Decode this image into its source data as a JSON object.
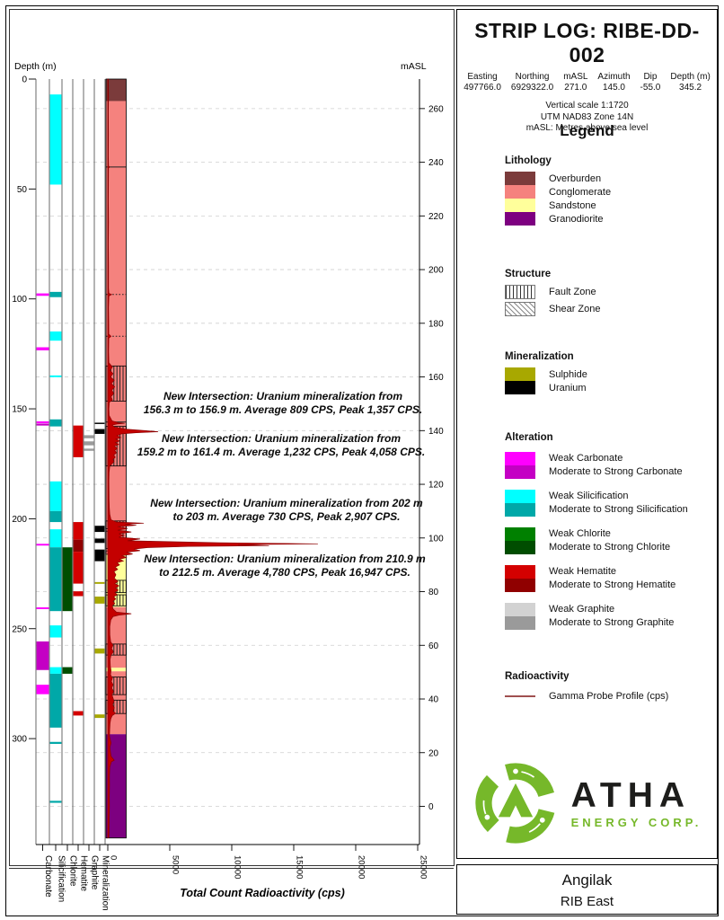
{
  "header": {
    "title": "STRIP LOG: RIBE-DD-002",
    "fields": [
      {
        "label": "Easting",
        "value": "497766.0"
      },
      {
        "label": "Northing",
        "value": "6929322.0"
      },
      {
        "label": "mASL",
        "value": "271.0"
      },
      {
        "label": "Azimuth",
        "value": "145.0"
      },
      {
        "label": "Dip",
        "value": "-55.0"
      },
      {
        "label": "Depth (m)",
        "value": "345.2"
      }
    ],
    "notes": [
      "Vertical scale 1:1720",
      "UTM NAD83 Zone 14N",
      "mASL: Metres above sea level"
    ]
  },
  "legend": {
    "title": "Legend",
    "lithology": {
      "title": "Lithology",
      "items": [
        {
          "label": "Overburden",
          "color": "#7B3B3B"
        },
        {
          "label": "Conglomerate",
          "color": "#F5827E"
        },
        {
          "label": "Sandstone",
          "color": "#FFFF9B"
        },
        {
          "label": "Granodiorite",
          "color": "#7D0080"
        }
      ]
    },
    "structure": {
      "title": "Structure",
      "items": [
        {
          "label": "Fault Zone",
          "pattern": "fault"
        },
        {
          "label": "Shear Zone",
          "pattern": "shear"
        }
      ]
    },
    "mineralization": {
      "title": "Mineralization",
      "items": [
        {
          "label": "Sulphide",
          "color": "#A8A800"
        },
        {
          "label": "Uranium",
          "color": "#000000"
        }
      ]
    },
    "alteration": {
      "title": "Alteration",
      "items": [
        {
          "weak_label": "Weak Carbonate",
          "strong_label": "Moderate to Strong Carbonate",
          "weak_color": "#FF00FF",
          "strong_color": "#C400C4"
        },
        {
          "weak_label": "Weak Silicification",
          "strong_label": "Moderate to Strong Silicification",
          "weak_color": "#00FFFF",
          "strong_color": "#00A8A8"
        },
        {
          "weak_label": "Weak Chlorite",
          "strong_label": "Moderate to Strong Chlorite",
          "weak_color": "#008000",
          "strong_color": "#004D00"
        },
        {
          "weak_label": "Weak Hematite",
          "strong_label": "Moderate to Strong Hematite",
          "weak_color": "#D40000",
          "strong_color": "#900000"
        },
        {
          "weak_label": "Weak Graphite",
          "strong_label": "Moderate to Strong Graphite",
          "weak_color": "#D2D2D2",
          "strong_color": "#9A9A9A"
        }
      ]
    },
    "radioactivity": {
      "title": "Radioactivity",
      "label": "Gamma Probe Profile (cps)",
      "line_color": "#A05050"
    }
  },
  "logo": {
    "text": "ATHA",
    "subtext": "ENERGY CORP.",
    "green": "#76B82A"
  },
  "footer": {
    "project": "Angilak",
    "area": "RIB East"
  },
  "chart_data": {
    "type": "strip-log",
    "depth_axis": {
      "label": "Depth (m)",
      "ticks": [
        0,
        50,
        100,
        150,
        200,
        250,
        300
      ],
      "max_depth": 345.2
    },
    "masl_axis": {
      "label": "mASL",
      "ticks": [
        260,
        240,
        220,
        200,
        180,
        160,
        140,
        120,
        100,
        80,
        60,
        40,
        20,
        0
      ],
      "collar_masl": 271.0,
      "dip_sin": 0.8192
    },
    "x_axis": {
      "label": "Total Count Radioactivity (cps)",
      "ticks": [
        0,
        5000,
        10000,
        15000,
        20000,
        25000
      ],
      "max": 25000
    },
    "colors": {
      "carbonate": {
        "w": "#FF00FF",
        "s": "#C400C4"
      },
      "silicification": {
        "w": "#00FFFF",
        "s": "#00A8A8"
      },
      "chlorite": {
        "w": "#008000",
        "s": "#004D00"
      },
      "hematite": {
        "w": "#D40000",
        "s": "#900000"
      },
      "graphite": {
        "w": "#D2D2D2",
        "s": "#9A9A9A"
      },
      "mineralization": {
        "u": "#000000",
        "sl": "#A8A800"
      }
    },
    "strip_columns": [
      {
        "label": "Carbonate",
        "key": "carbonate",
        "intervals": [
          [
            97.5,
            98.6,
            "w"
          ],
          [
            122,
            123.4,
            "w"
          ],
          [
            155.7,
            156.5,
            "w"
          ],
          [
            156.7,
            157.6,
            "s"
          ],
          [
            211.4,
            212.2,
            "w"
          ],
          [
            240.3,
            241.1,
            "w"
          ],
          [
            255.8,
            268.8,
            "s"
          ],
          [
            275.5,
            279.8,
            "w"
          ]
        ]
      },
      {
        "label": "Silicification",
        "key": "silicification",
        "intervals": [
          [
            7,
            48,
            "w"
          ],
          [
            96.8,
            99.2,
            "s"
          ],
          [
            114.8,
            119,
            "w"
          ],
          [
            134.8,
            135.6,
            "w"
          ],
          [
            154.8,
            158,
            "s"
          ],
          [
            183,
            196.5,
            "w"
          ],
          [
            196.5,
            201.5,
            "s"
          ],
          [
            204.8,
            213,
            "w"
          ],
          [
            213,
            242,
            "s"
          ],
          [
            248.5,
            254,
            "w"
          ],
          [
            267.5,
            270.5,
            "w"
          ],
          [
            270.5,
            295,
            "s"
          ],
          [
            301.5,
            302.4,
            "s"
          ],
          [
            328.3,
            329.2,
            "s"
          ]
        ]
      },
      {
        "label": "Chlorite",
        "key": "chlorite",
        "intervals": [
          [
            213,
            242,
            "s"
          ],
          [
            267.5,
            270.5,
            "s"
          ]
        ]
      },
      {
        "label": "Hematite",
        "key": "hematite",
        "intervals": [
          [
            157.6,
            172,
            "w"
          ],
          [
            201.5,
            209.5,
            "w"
          ],
          [
            209.5,
            215,
            "s"
          ],
          [
            215,
            229.5,
            "w"
          ],
          [
            233,
            235.2,
            "w"
          ],
          [
            287.5,
            289.5,
            "w"
          ]
        ]
      },
      {
        "label": "Graphite",
        "key": "graphite",
        "intervals": [
          [
            162,
            163.4,
            "s"
          ],
          [
            164.8,
            166.6,
            "s"
          ],
          [
            168.1,
            169.1,
            "s"
          ]
        ]
      },
      {
        "label": "Mineralization",
        "key": "mineralization",
        "intervals": [
          [
            156.3,
            156.9,
            "u"
          ],
          [
            159.2,
            161.4,
            "u"
          ],
          [
            203.2,
            206,
            "u"
          ],
          [
            209,
            211,
            "u"
          ],
          [
            214,
            219.3,
            "u"
          ],
          [
            228.8,
            229.6,
            "sl"
          ],
          [
            235.4,
            238.6,
            "sl"
          ],
          [
            259,
            261.3,
            "sl"
          ],
          [
            289,
            290.6,
            "sl"
          ]
        ]
      }
    ],
    "lithology_colors": {
      "Overburden": "#7B3B3B",
      "Conglomerate": "#F5827E",
      "Sandstone": "#FFFF9B",
      "Granodiorite": "#7D0080"
    },
    "lithology_intervals": [
      [
        0,
        10,
        "Overburden"
      ],
      [
        10,
        216,
        "Conglomerate"
      ],
      [
        216,
        240.2,
        "Sandstone"
      ],
      [
        240.2,
        267.8,
        "Conglomerate"
      ],
      [
        267.8,
        269.4,
        "Sandstone"
      ],
      [
        269.4,
        298,
        "Conglomerate"
      ],
      [
        298,
        345.2,
        "Granodiorite"
      ]
    ],
    "fault_zones": [
      [
        130.5,
        146.5
      ],
      [
        158,
        176
      ],
      [
        201,
        204.6
      ],
      [
        205.6,
        213.6
      ],
      [
        228,
        233.6
      ],
      [
        234.6,
        239.6
      ],
      [
        257,
        262
      ],
      [
        272,
        280
      ],
      [
        282.5,
        288.6
      ]
    ],
    "shear_zones": [
      [
        214.6,
        216.2
      ]
    ],
    "contacts": [
      {
        "d": 40,
        "style": "solid"
      },
      {
        "d": 98,
        "style": "dotted"
      },
      {
        "d": 117,
        "style": "dotted"
      },
      {
        "d": 156,
        "style": "solid"
      }
    ],
    "gamma_profile_cps": [
      [
        0,
        40
      ],
      [
        8,
        55
      ],
      [
        15,
        45
      ],
      [
        25,
        50
      ],
      [
        35,
        45
      ],
      [
        39.5,
        60
      ],
      [
        40,
        140
      ],
      [
        40.5,
        60
      ],
      [
        48,
        50
      ],
      [
        55,
        45
      ],
      [
        65,
        55
      ],
      [
        75,
        45
      ],
      [
        85,
        55
      ],
      [
        95,
        60
      ],
      [
        97.5,
        90
      ],
      [
        98,
        310
      ],
      [
        98.7,
        90
      ],
      [
        104,
        60
      ],
      [
        110,
        70
      ],
      [
        116,
        80
      ],
      [
        117,
        260
      ],
      [
        117.8,
        80
      ],
      [
        124,
        65
      ],
      [
        129,
        90
      ],
      [
        131,
        380
      ],
      [
        132.5,
        180
      ],
      [
        134,
        420
      ],
      [
        135.5,
        220
      ],
      [
        137,
        520
      ],
      [
        138.5,
        280
      ],
      [
        140,
        560
      ],
      [
        141.5,
        320
      ],
      [
        143,
        480
      ],
      [
        144.5,
        260
      ],
      [
        146,
        380
      ],
      [
        147,
        120
      ],
      [
        150,
        90
      ],
      [
        153,
        110
      ],
      [
        155.5,
        350
      ],
      [
        156.3,
        850
      ],
      [
        156.6,
        1357
      ],
      [
        156.9,
        750
      ],
      [
        157.4,
        350
      ],
      [
        158.3,
        550
      ],
      [
        159.2,
        1400
      ],
      [
        159.8,
        2700
      ],
      [
        160.4,
        4058
      ],
      [
        160.9,
        2300
      ],
      [
        161.4,
        1100
      ],
      [
        162.2,
        750
      ],
      [
        163,
        1050
      ],
      [
        163.8,
        650
      ],
      [
        164.6,
        950
      ],
      [
        165.4,
        600
      ],
      [
        166.2,
        880
      ],
      [
        167,
        520
      ],
      [
        168,
        760
      ],
      [
        169,
        560
      ],
      [
        170,
        700
      ],
      [
        171,
        480
      ],
      [
        172,
        600
      ],
      [
        173,
        420
      ],
      [
        174,
        500
      ],
      [
        175,
        330
      ],
      [
        176,
        160
      ],
      [
        179,
        100
      ],
      [
        183,
        90
      ],
      [
        187,
        95
      ],
      [
        191,
        100
      ],
      [
        195,
        120
      ],
      [
        198,
        160
      ],
      [
        200.5,
        260
      ],
      [
        201.5,
        700
      ],
      [
        202,
        2907
      ],
      [
        202.5,
        1400
      ],
      [
        203,
        2300
      ],
      [
        203.6,
        800
      ],
      [
        204.4,
        1600
      ],
      [
        205.2,
        800
      ],
      [
        206,
        1900
      ],
      [
        206.8,
        900
      ],
      [
        207.6,
        1300
      ],
      [
        208.4,
        900
      ],
      [
        209.2,
        2600
      ],
      [
        210,
        1600
      ],
      [
        210.9,
        9000
      ],
      [
        211.4,
        16947
      ],
      [
        211.8,
        10500
      ],
      [
        212.2,
        13000
      ],
      [
        212.6,
        6500
      ],
      [
        213.1,
        3200
      ],
      [
        213.8,
        2100
      ],
      [
        214.5,
        2600
      ],
      [
        215.2,
        1500
      ],
      [
        216,
        2000
      ],
      [
        216.8,
        1150
      ],
      [
        217.6,
        1500
      ],
      [
        218.4,
        950
      ],
      [
        219.2,
        1250
      ],
      [
        220,
        750
      ],
      [
        221,
        950
      ],
      [
        222,
        600
      ],
      [
        223,
        800
      ],
      [
        224,
        500
      ],
      [
        225.5,
        650
      ],
      [
        227,
        520
      ],
      [
        228.5,
        820
      ],
      [
        229.5,
        560
      ],
      [
        230.5,
        900
      ],
      [
        231.5,
        620
      ],
      [
        232.5,
        840
      ],
      [
        233.5,
        560
      ],
      [
        234.5,
        760
      ],
      [
        235.5,
        480
      ],
      [
        236.5,
        640
      ],
      [
        237.5,
        420
      ],
      [
        238.5,
        560
      ],
      [
        239.5,
        360
      ],
      [
        241,
        420
      ],
      [
        242.5,
        700
      ],
      [
        243.2,
        1900
      ],
      [
        243.8,
        900
      ],
      [
        244.5,
        420
      ],
      [
        246,
        240
      ],
      [
        249,
        160
      ],
      [
        253,
        170
      ],
      [
        256,
        230
      ],
      [
        257.5,
        420
      ],
      [
        259,
        300
      ],
      [
        260.5,
        460
      ],
      [
        262,
        260
      ],
      [
        264,
        180
      ],
      [
        267,
        200
      ],
      [
        269,
        260
      ],
      [
        271,
        220
      ],
      [
        272.5,
        380
      ],
      [
        274,
        280
      ],
      [
        275.5,
        430
      ],
      [
        277,
        310
      ],
      [
        278.5,
        470
      ],
      [
        280,
        330
      ],
      [
        281.5,
        420
      ],
      [
        283,
        500
      ],
      [
        284.5,
        380
      ],
      [
        286,
        520
      ],
      [
        287.5,
        430
      ],
      [
        288.5,
        620
      ],
      [
        289.5,
        360
      ],
      [
        291,
        240
      ],
      [
        293,
        180
      ],
      [
        296,
        150
      ],
      [
        299,
        140
      ],
      [
        302,
        260
      ],
      [
        304,
        170
      ],
      [
        306,
        210
      ],
      [
        308,
        260
      ],
      [
        309.8,
        520
      ],
      [
        310.6,
        280
      ],
      [
        313,
        160
      ],
      [
        317,
        130
      ],
      [
        321,
        140
      ],
      [
        326,
        120
      ],
      [
        331,
        130
      ],
      [
        336,
        110
      ],
      [
        341,
        100
      ],
      [
        345,
        90
      ]
    ],
    "gamma_color": {
      "stroke": "#8B0000",
      "fill": "#C40000"
    },
    "annotations": [
      {
        "lines": [
          "New Intersection: Uranium mineralization from",
          "156.3 m to 156.9 m. Average 809 CPS, Peak 1,357 CPS."
        ]
      },
      {
        "lines": [
          "New Intersection: Uranium mineralization from",
          "159.2 m to 161.4 m. Average 1,232 CPS, Peak 4,058 CPS."
        ]
      },
      {
        "lines": [
          "New Intersection: Uranium mineralization from 202 m",
          "to 203 m. Average 730 CPS, Peak 2,907 CPS."
        ]
      },
      {
        "lines": [
          "New Intersection: Uranium mineralization from 210.9 m",
          "to 212.5 m. Average 4,780 CPS, Peak 16,947 CPS."
        ]
      }
    ]
  }
}
